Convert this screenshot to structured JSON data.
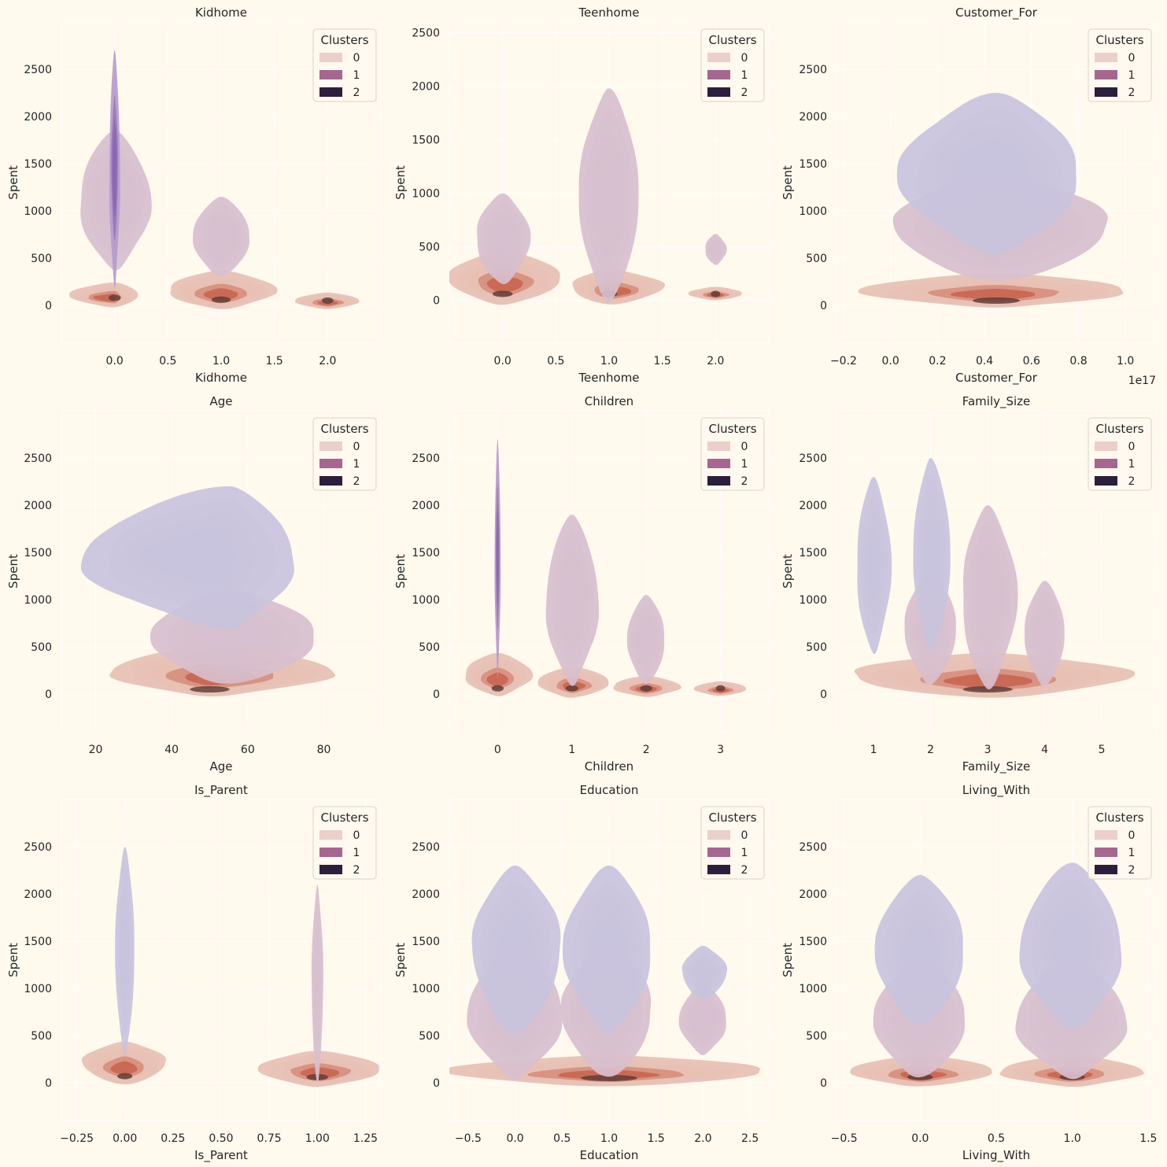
{
  "chart_data": [
    {
      "type": "kde",
      "title": "Kidhome",
      "xlabel": "Kidhome",
      "ylabel": "Spent",
      "xlim": [
        -0.5,
        2.5
      ],
      "ylim": [
        -400,
        3000
      ],
      "xticks": [
        0.0,
        0.5,
        1.0,
        1.5,
        2.0
      ],
      "xticklabels": [
        "0.0",
        "0.5",
        "1.0",
        "1.5",
        "2.0"
      ],
      "yticks": [
        0,
        500,
        1000,
        1500,
        2000,
        2500
      ],
      "yticklabels": [
        "0",
        "500",
        "1000",
        "1500",
        "2000",
        "2500"
      ],
      "offset_label": "",
      "legend": {
        "title": "Clusters",
        "entries": [
          "0",
          "1",
          "2"
        ],
        "position": "top-right"
      },
      "blobs": [
        {
          "cluster": "0",
          "x": 0.0,
          "y": 80,
          "x0": -0.42,
          "x1": 0.22,
          "y0": -20,
          "y1": 250
        },
        {
          "cluster": "0",
          "x": 1.0,
          "y": 60,
          "x0": 0.5,
          "x1": 1.5,
          "y0": -40,
          "y1": 380
        },
        {
          "cluster": "0",
          "x": 2.0,
          "y": 50,
          "x0": 1.7,
          "x1": 2.3,
          "y0": -40,
          "y1": 140
        },
        {
          "cluster": "1",
          "x": 0.0,
          "y": 750,
          "x0": -0.33,
          "x1": 0.33,
          "y0": 380,
          "y1": 1850
        },
        {
          "cluster": "1",
          "x": 1.0,
          "y": 500,
          "x0": 0.74,
          "x1": 1.27,
          "y0": 300,
          "y1": 1150
        },
        {
          "cluster": "2",
          "x": 0.0,
          "y": 1400,
          "x0": -0.05,
          "x1": 0.05,
          "y0": 200,
          "y1": 2700
        }
      ]
    },
    {
      "type": "kde",
      "title": "Teenhome",
      "xlabel": "Teenhome",
      "ylabel": "Spent",
      "xlim": [
        -0.5,
        2.5
      ],
      "ylim": [
        -400,
        2600
      ],
      "xticks": [
        0.0,
        0.5,
        1.0,
        1.5,
        2.0
      ],
      "xticklabels": [
        "0.0",
        "0.5",
        "1.0",
        "1.5",
        "2.0"
      ],
      "yticks": [
        0,
        500,
        1000,
        1500,
        2000,
        2500
      ],
      "yticklabels": [
        "0",
        "500",
        "1000",
        "1500",
        "2000",
        "2500"
      ],
      "offset_label": "",
      "legend": {
        "title": "Clusters",
        "entries": [
          "0",
          "1",
          "2"
        ],
        "position": "top-right"
      },
      "blobs": [
        {
          "cluster": "0",
          "x": 0.0,
          "y": 60,
          "x0": -0.5,
          "x1": 0.55,
          "y0": -40,
          "y1": 480
        },
        {
          "cluster": "0",
          "x": 1.0,
          "y": 60,
          "x0": 0.65,
          "x1": 1.5,
          "y0": -40,
          "y1": 300
        },
        {
          "cluster": "0",
          "x": 2.0,
          "y": 60,
          "x0": 1.75,
          "x1": 2.25,
          "y0": 0,
          "y1": 130
        },
        {
          "cluster": "1",
          "x": 0.0,
          "y": 550,
          "x0": -0.25,
          "x1": 0.25,
          "y0": 150,
          "y1": 1000
        },
        {
          "cluster": "1",
          "x": 1.0,
          "y": 600,
          "x0": 0.72,
          "x1": 1.28,
          "y0": -20,
          "y1": 1980
        },
        {
          "cluster": "1",
          "x": 2.0,
          "y": 480,
          "x0": 1.9,
          "x1": 2.1,
          "y0": 330,
          "y1": 620
        }
      ]
    },
    {
      "type": "kde",
      "title": "Customer_For",
      "xlabel": "Customer_For",
      "ylabel": "Spent",
      "xlim": [
        -0.23,
        1.13
      ],
      "ylim": [
        -400,
        3000
      ],
      "xticks": [
        -0.2,
        0.0,
        0.2,
        0.4,
        0.6,
        0.8,
        1.0
      ],
      "xticklabels": [
        "−0.2",
        "0.0",
        "0.2",
        "0.4",
        "0.6",
        "0.8",
        "1.0"
      ],
      "yticks": [
        0,
        500,
        1000,
        1500,
        2000,
        2500
      ],
      "yticklabels": [
        "0",
        "500",
        "1000",
        "1500",
        "2000",
        "2500"
      ],
      "offset_label": "1e17",
      "legend": {
        "title": "Clusters",
        "entries": [
          "0",
          "1",
          "2"
        ],
        "position": "top-right"
      },
      "blobs": [
        {
          "cluster": "0",
          "x": 0.45,
          "y": 50,
          "x0": -0.12,
          "x1": 1.0,
          "y0": -20,
          "y1": 350
        },
        {
          "cluster": "1",
          "x": 0.45,
          "y": 550,
          "x0": 0.02,
          "x1": 0.92,
          "y0": 250,
          "y1": 1400
        },
        {
          "cluster": "1",
          "x": 0.45,
          "y": 1300,
          "x0": 0.04,
          "x1": 0.8,
          "y0": 550,
          "y1": 2250
        }
      ]
    },
    {
      "type": "kde",
      "title": "Age",
      "xlabel": "Age",
      "ylabel": "Spent",
      "xlim": [
        11,
        95
      ],
      "ylim": [
        -400,
        3000
      ],
      "xticks": [
        20,
        40,
        60,
        80
      ],
      "xticklabels": [
        "20",
        "40",
        "60",
        "80"
      ],
      "yticks": [
        0,
        500,
        1000,
        1500,
        2000,
        2500
      ],
      "yticklabels": [
        "0",
        "500",
        "1000",
        "1500",
        "2000",
        "2500"
      ],
      "offset_label": "",
      "legend": {
        "title": "Clusters",
        "entries": [
          "0",
          "1",
          "2"
        ],
        "position": "top-right"
      },
      "blobs": [
        {
          "cluster": "0",
          "x": 50,
          "y": 50,
          "x0": 24,
          "x1": 82,
          "y0": -20,
          "y1": 520
        },
        {
          "cluster": "1",
          "x": 55,
          "y": 500,
          "x0": 35,
          "x1": 78,
          "y0": 100,
          "y1": 1100
        },
        {
          "cluster": "1",
          "x": 55,
          "y": 1350,
          "x0": 17,
          "x1": 72,
          "y0": 700,
          "y1": 2200
        }
      ]
    },
    {
      "type": "kde",
      "title": "Children",
      "xlabel": "Children",
      "ylabel": "Spent",
      "xlim": [
        -0.65,
        3.65
      ],
      "ylim": [
        -400,
        3000
      ],
      "xticks": [
        0,
        1,
        2,
        3
      ],
      "xticklabels": [
        "0",
        "1",
        "2",
        "3"
      ],
      "yticks": [
        0,
        500,
        1000,
        1500,
        2000,
        2500
      ],
      "yticklabels": [
        "0",
        "500",
        "1000",
        "1500",
        "2000",
        "2500"
      ],
      "offset_label": "",
      "legend": {
        "title": "Clusters",
        "entries": [
          "0",
          "1",
          "2"
        ],
        "position": "top-right"
      },
      "blobs": [
        {
          "cluster": "0",
          "x": 0.0,
          "y": 60,
          "x0": -0.45,
          "x1": 0.45,
          "y0": -20,
          "y1": 450
        },
        {
          "cluster": "0",
          "x": 1.0,
          "y": 60,
          "x0": 0.55,
          "x1": 1.5,
          "y0": -40,
          "y1": 300
        },
        {
          "cluster": "0",
          "x": 2.0,
          "y": 60,
          "x0": 1.55,
          "x1": 2.45,
          "y0": -30,
          "y1": 200
        },
        {
          "cluster": "0",
          "x": 3.0,
          "y": 60,
          "x0": 2.65,
          "x1": 3.35,
          "y0": -20,
          "y1": 140
        },
        {
          "cluster": "1",
          "x": 1.0,
          "y": 700,
          "x0": 0.65,
          "x1": 1.35,
          "y0": 100,
          "y1": 1900
        },
        {
          "cluster": "1",
          "x": 2.0,
          "y": 500,
          "x0": 1.75,
          "x1": 2.25,
          "y0": 100,
          "y1": 1050
        },
        {
          "cluster": "2",
          "x": 0.0,
          "y": 1400,
          "x0": -0.04,
          "x1": 0.04,
          "y0": 200,
          "y1": 2700
        }
      ]
    },
    {
      "type": "kde",
      "title": "Family_Size",
      "xlabel": "Family_Size",
      "ylabel": "Spent",
      "xlim": [
        0.35,
        5.95
      ],
      "ylim": [
        -400,
        3000
      ],
      "xticks": [
        1,
        2,
        3,
        4,
        5
      ],
      "xticklabels": [
        "1",
        "2",
        "3",
        "4",
        "5"
      ],
      "yticks": [
        0,
        500,
        1000,
        1500,
        2000,
        2500
      ],
      "yticklabels": [
        "0",
        "500",
        "1000",
        "1500",
        "2000",
        "2500"
      ],
      "offset_label": "",
      "legend": {
        "title": "Clusters",
        "entries": [
          "0",
          "1",
          "2"
        ],
        "position": "top-right"
      },
      "blobs": [
        {
          "cluster": "0",
          "x": 3.0,
          "y": 50,
          "x0": 0.6,
          "x1": 5.45,
          "y0": -40,
          "y1": 450
        },
        {
          "cluster": "1",
          "x": 2.0,
          "y": 500,
          "x0": 1.55,
          "x1": 2.45,
          "y0": 100,
          "y1": 1300
        },
        {
          "cluster": "1",
          "x": 3.0,
          "y": 700,
          "x0": 2.55,
          "x1": 3.5,
          "y0": 50,
          "y1": 2000
        },
        {
          "cluster": "1",
          "x": 4.0,
          "y": 600,
          "x0": 3.65,
          "x1": 4.35,
          "y0": 80,
          "y1": 1200
        },
        {
          "cluster": "1",
          "x": 1.0,
          "y": 1400,
          "x0": 0.7,
          "x1": 1.3,
          "y0": 430,
          "y1": 2300
        },
        {
          "cluster": "1",
          "x": 2.0,
          "y": 1500,
          "x0": 1.7,
          "x1": 2.35,
          "y0": 450,
          "y1": 2500
        }
      ]
    },
    {
      "type": "kde",
      "title": "Is_Parent",
      "xlabel": "Is_Parent",
      "ylabel": "Spent",
      "xlim": [
        -0.33,
        1.33
      ],
      "ylim": [
        -400,
        3000
      ],
      "xticks": [
        -0.25,
        0.0,
        0.25,
        0.5,
        0.75,
        1.0,
        1.25
      ],
      "xticklabels": [
        "−0.25",
        "0.00",
        "0.25",
        "0.50",
        "0.75",
        "1.00",
        "1.25"
      ],
      "yticks": [
        0,
        500,
        1000,
        1500,
        2000,
        2500
      ],
      "yticklabels": [
        "0",
        "500",
        "1000",
        "1500",
        "2000",
        "2500"
      ],
      "offset_label": "",
      "legend": {
        "title": "Clusters",
        "entries": [
          "0",
          "1",
          "2"
        ],
        "position": "top-right"
      },
      "blobs": [
        {
          "cluster": "0",
          "x": 0.0,
          "y": 70,
          "x0": -0.22,
          "x1": 0.21,
          "y0": -20,
          "y1": 450
        },
        {
          "cluster": "0",
          "x": 1.0,
          "y": 60,
          "x0": 0.7,
          "x1": 1.33,
          "y0": -40,
          "y1": 350
        },
        {
          "cluster": "1",
          "x": 1.0,
          "y": 800,
          "x0": 0.97,
          "x1": 1.03,
          "y0": -20,
          "y1": 2100
        },
        {
          "cluster": "1",
          "x": 0.0,
          "y": 1400,
          "x0": -0.05,
          "x1": 0.05,
          "y0": 300,
          "y1": 2500
        }
      ]
    },
    {
      "type": "kde",
      "title": "Education",
      "xlabel": "Education",
      "ylabel": "Spent",
      "xlim": [
        -0.7,
        2.7
      ],
      "ylim": [
        -400,
        3000
      ],
      "xticks": [
        -0.5,
        0.0,
        0.5,
        1.0,
        1.5,
        2.0,
        2.5
      ],
      "xticklabels": [
        "−0.5",
        "0.0",
        "0.5",
        "1.0",
        "1.5",
        "2.0",
        "2.5"
      ],
      "yticks": [
        0,
        500,
        1000,
        1500,
        2000,
        2500
      ],
      "yticklabels": [
        "0",
        "500",
        "1000",
        "1500",
        "2000",
        "2500"
      ],
      "offset_label": "",
      "legend": {
        "title": "Clusters",
        "entries": [
          "0",
          "1",
          "2"
        ],
        "position": "top-right"
      },
      "blobs": [
        {
          "cluster": "0",
          "x": 1.0,
          "y": 50,
          "x0": -0.7,
          "x1": 2.65,
          "y0": -40,
          "y1": 300
        },
        {
          "cluster": "1",
          "x": 0.0,
          "y": 650,
          "x0": -0.5,
          "x1": 0.5,
          "y0": 50,
          "y1": 1450
        },
        {
          "cluster": "1",
          "x": 1.0,
          "y": 650,
          "x0": 0.5,
          "x1": 1.45,
          "y0": 50,
          "y1": 1450
        },
        {
          "cluster": "1",
          "x": 2.0,
          "y": 650,
          "x0": 1.75,
          "x1": 2.25,
          "y0": 300,
          "y1": 1050
        },
        {
          "cluster": "1",
          "x": 0.0,
          "y": 1400,
          "x0": -0.45,
          "x1": 0.48,
          "y0": 500,
          "y1": 2300
        },
        {
          "cluster": "1",
          "x": 1.0,
          "y": 1400,
          "x0": 0.52,
          "x1": 1.45,
          "y0": 550,
          "y1": 2300
        },
        {
          "cluster": "1",
          "x": 2.0,
          "y": 1200,
          "x0": 1.78,
          "x1": 2.25,
          "y0": 880,
          "y1": 1450
        }
      ]
    },
    {
      "type": "kde",
      "title": "Living_With",
      "xlabel": "Living_With",
      "ylabel": "Spent",
      "xlim": [
        -0.55,
        1.55
      ],
      "ylim": [
        -400,
        3000
      ],
      "xticks": [
        -0.5,
        0.0,
        0.5,
        1.0,
        1.5
      ],
      "xticklabels": [
        "−0.5",
        "0.0",
        "0.5",
        "1.0",
        "1.5"
      ],
      "yticks": [
        0,
        500,
        1000,
        1500,
        2000,
        2500
      ],
      "yticklabels": [
        "0",
        "500",
        "1000",
        "1500",
        "2000",
        "2500"
      ],
      "offset_label": "",
      "legend": {
        "title": "Clusters",
        "entries": [
          "0",
          "1",
          "2"
        ],
        "position": "top-right"
      },
      "blobs": [
        {
          "cluster": "0",
          "x": 0.0,
          "y": 60,
          "x0": -0.45,
          "x1": 0.48,
          "y0": -40,
          "y1": 300
        },
        {
          "cluster": "0",
          "x": 1.0,
          "y": 60,
          "x0": 0.52,
          "x1": 1.45,
          "y0": -40,
          "y1": 300
        },
        {
          "cluster": "1",
          "x": 0.0,
          "y": 600,
          "x0": -0.3,
          "x1": 0.3,
          "y0": 50,
          "y1": 1300
        },
        {
          "cluster": "1",
          "x": 1.0,
          "y": 600,
          "x0": 0.63,
          "x1": 1.35,
          "y0": 50,
          "y1": 1300
        },
        {
          "cluster": "1",
          "x": 0.0,
          "y": 1350,
          "x0": -0.29,
          "x1": 0.29,
          "y0": 600,
          "y1": 2200
        },
        {
          "cluster": "1",
          "x": 1.0,
          "y": 1400,
          "x0": 0.66,
          "x1": 1.32,
          "y0": 570,
          "y1": 2330
        }
      ]
    }
  ],
  "colors": {
    "background": "#FFF9EE",
    "grid": "#FFFFFF",
    "text": "#262626",
    "cluster_0_fill": "#E7BFB3",
    "cluster_0_core": "#C65C45",
    "cluster_0_peak": "#5A3A34",
    "cluster_1_fill": "#D8BFCE",
    "cluster_1_lavender": "#C9C3DD",
    "cluster_2_fill": "#B79BCE",
    "cluster_2_core": "#7A52A6",
    "legend_0": "#EACFCB",
    "legend_1": "#A6668F",
    "legend_2": "#2D1E3E"
  }
}
